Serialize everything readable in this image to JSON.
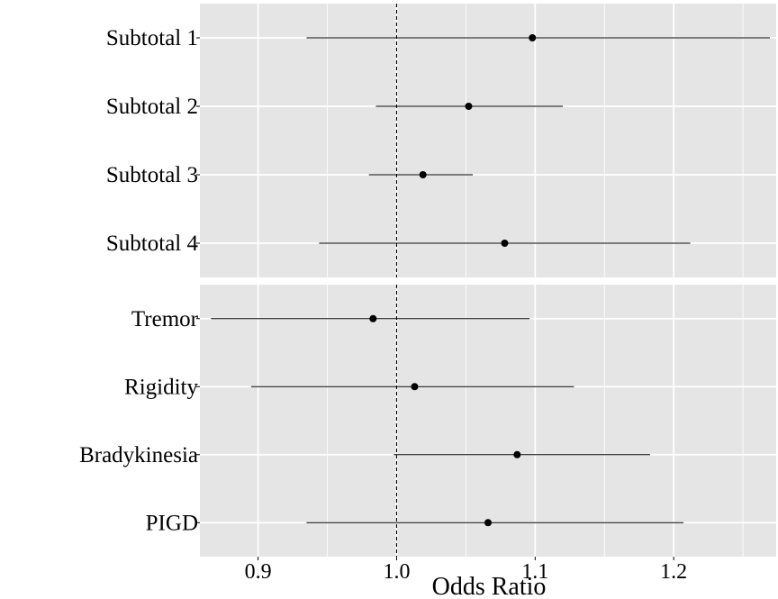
{
  "chart_data": {
    "type": "forest",
    "xlabel": "Odds Ratio",
    "xlim": [
      0.858,
      1.274
    ],
    "xticks": [
      0.9,
      1.0,
      1.1,
      1.2
    ],
    "xtick_labels": [
      "0.9",
      "1.0",
      "1.1",
      "1.2"
    ],
    "minor_xticks": [
      0.95,
      1.05,
      1.15,
      1.25
    ],
    "reference_line": 1.0,
    "colors": {
      "panel_bg": "#e5e5e5",
      "grid": "#ffffff",
      "mark": "#000000"
    },
    "panels": [
      {
        "rows": [
          {
            "label": "Subtotal 1",
            "or": 1.098,
            "lower": 0.935,
            "upper": 1.272
          },
          {
            "label": "Subtotal 2",
            "or": 1.052,
            "lower": 0.985,
            "upper": 1.12
          },
          {
            "label": "Subtotal 3",
            "or": 1.019,
            "lower": 0.98,
            "upper": 1.055
          },
          {
            "label": "Subtotal 4",
            "or": 1.078,
            "lower": 0.944,
            "upper": 1.212
          }
        ]
      },
      {
        "rows": [
          {
            "label": "Tremor",
            "or": 0.983,
            "lower": 0.866,
            "upper": 1.096
          },
          {
            "label": "Rigidity",
            "or": 1.013,
            "lower": 0.895,
            "upper": 1.128
          },
          {
            "label": "Bradykinesia",
            "or": 1.087,
            "lower": 0.998,
            "upper": 1.183
          },
          {
            "label": "PIGD",
            "or": 1.066,
            "lower": 0.935,
            "upper": 1.207
          }
        ]
      }
    ]
  }
}
